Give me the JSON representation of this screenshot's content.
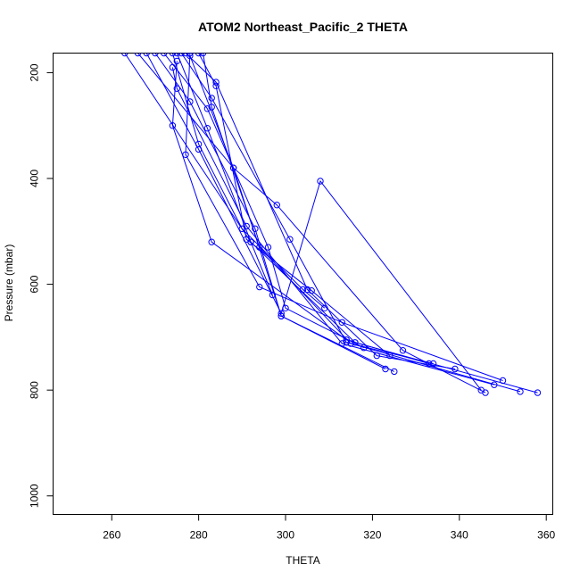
{
  "chart_data": {
    "type": "line",
    "title": "ATOM2 Northeast_Pacific_2 THETA",
    "xlabel": "THETA",
    "ylabel": "Pressure (mbar)",
    "xlim": [
      246.5,
      361.5
    ],
    "ylim": [
      1035,
      163
    ],
    "y_inverted": true,
    "x_ticks": [
      260,
      280,
      300,
      320,
      340,
      360
    ],
    "y_ticks": [
      200,
      400,
      600,
      800,
      1000
    ],
    "grid": false,
    "legend": "none",
    "line_color": "#0000ff",
    "marker": "open-circle",
    "series": [
      {
        "points": [
          [
            263,
            163
          ],
          [
            292,
            520
          ],
          [
            297,
            620
          ]
        ]
      },
      {
        "points": [
          [
            266,
            163
          ],
          [
            288,
            380
          ],
          [
            298,
            450
          ],
          [
            327,
            725
          ],
          [
            346,
            805
          ]
        ]
      },
      {
        "points": [
          [
            268,
            163
          ],
          [
            280,
            345
          ],
          [
            299,
            655
          ],
          [
            308,
            405
          ],
          [
            345,
            800
          ]
        ]
      },
      {
        "points": [
          [
            270,
            163
          ],
          [
            278,
            255
          ],
          [
            293,
            495
          ],
          [
            299,
            660
          ],
          [
            323,
            760
          ]
        ]
      },
      {
        "points": [
          [
            272,
            163
          ],
          [
            282,
            268
          ],
          [
            296,
            530
          ],
          [
            300,
            645
          ],
          [
            318,
            720
          ]
        ]
      },
      {
        "points": [
          [
            274,
            163
          ],
          [
            280,
            335
          ],
          [
            290,
            495
          ],
          [
            304,
            610
          ],
          [
            309,
            645
          ]
        ]
      },
      {
        "points": [
          [
            275,
            163
          ],
          [
            282,
            305
          ],
          [
            292,
            520
          ],
          [
            316,
            710
          ],
          [
            358,
            805
          ]
        ]
      },
      {
        "points": [
          [
            276,
            163
          ],
          [
            283,
            248
          ],
          [
            301,
            515
          ],
          [
            314,
            710
          ],
          [
            334,
            750
          ]
        ]
      },
      {
        "points": [
          [
            277,
            163
          ],
          [
            284,
            218
          ],
          [
            305,
            610
          ],
          [
            321,
            735
          ],
          [
            339,
            760
          ]
        ]
      },
      {
        "points": [
          [
            278,
            163
          ],
          [
            277,
            355
          ],
          [
            294,
            605
          ],
          [
            313,
            672
          ],
          [
            350,
            782
          ]
        ]
      },
      {
        "points": [
          [
            280,
            163
          ],
          [
            284,
            225
          ],
          [
            291,
            515
          ],
          [
            306,
            612
          ],
          [
            324,
            735
          ]
        ]
      },
      {
        "points": [
          [
            281,
            163
          ],
          [
            283,
            265
          ],
          [
            294,
            530
          ],
          [
            315,
            712
          ],
          [
            354,
            803
          ]
        ]
      },
      {
        "points": [
          [
            275,
            178
          ],
          [
            274,
            300
          ],
          [
            283,
            520
          ],
          [
            314,
            705
          ],
          [
            333,
            750
          ]
        ]
      },
      {
        "points": [
          [
            274,
            190
          ],
          [
            275,
            230
          ],
          [
            291,
            490
          ],
          [
            313,
            712
          ],
          [
            348,
            790
          ]
        ]
      },
      {
        "points": [
          [
            278,
            168
          ],
          [
            288,
            380
          ],
          [
            299,
            660
          ],
          [
            325,
            765
          ]
        ]
      }
    ]
  }
}
